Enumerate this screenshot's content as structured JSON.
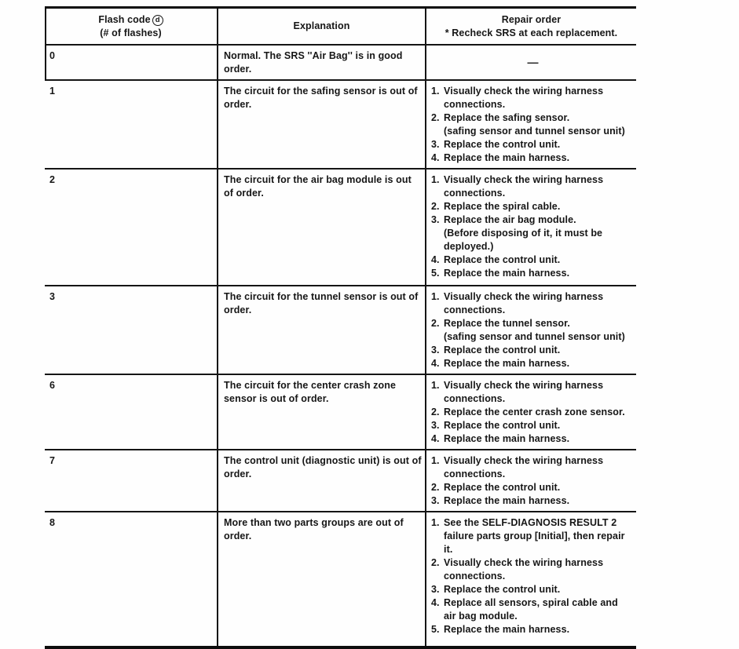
{
  "table": {
    "header": {
      "flash_code_line1": "Flash code",
      "flash_code_symbol": "d",
      "flash_code_line2": "(# of flashes)",
      "explanation": "Explanation",
      "repair_line1": "Repair order",
      "repair_line2": "* Recheck SRS at each replacement."
    },
    "rows": [
      {
        "code": "0",
        "explanation": "Normal. The SRS ''Air Bag'' is in good\norder.",
        "no_repair_symbol": "—",
        "repair": []
      },
      {
        "code": "1",
        "explanation": "The circuit for the safing sensor is out of\norder.",
        "repair": [
          {
            "num": "1.",
            "text": "Visually check the wiring harness\nconnections."
          },
          {
            "num": "2.",
            "text": "Replace the safing sensor.\n(safing sensor and tunnel sensor unit)"
          },
          {
            "num": "3.",
            "text": "Replace the control unit."
          },
          {
            "num": "4.",
            "text": "Replace the main harness."
          }
        ]
      },
      {
        "code": "2",
        "explanation": "The circuit for the air bag module is out\nof order.",
        "repair": [
          {
            "num": "1.",
            "text": "Visually check the wiring harness\nconnections."
          },
          {
            "num": "2.",
            "text": "Replace the spiral cable."
          },
          {
            "num": "3.",
            "text": "Replace the air bag module.\n(Before disposing of it, it must be\ndeployed.)"
          },
          {
            "num": "4.",
            "text": "Replace the control unit."
          },
          {
            "num": "5.",
            "text": "Replace the main harness."
          }
        ]
      },
      {
        "code": "3",
        "explanation": "The circuit for the tunnel sensor is out of\norder.",
        "repair": [
          {
            "num": "1.",
            "text": "Visually check the wiring harness\nconnections."
          },
          {
            "num": "2.",
            "text": "Replace the tunnel sensor.\n(safing sensor and tunnel sensor unit)"
          },
          {
            "num": "3.",
            "text": "Replace the control unit."
          },
          {
            "num": "4.",
            "text": "Replace the main harness."
          }
        ]
      },
      {
        "code": "6",
        "explanation": "The circuit for the center crash zone\nsensor is out of order.",
        "repair": [
          {
            "num": "1.",
            "text": "Visually check the wiring harness\nconnections."
          },
          {
            "num": "2.",
            "text": "Replace the center crash zone sensor."
          },
          {
            "num": "3.",
            "text": "Replace the control unit."
          },
          {
            "num": "4.",
            "text": "Replace the main harness."
          }
        ]
      },
      {
        "code": "7",
        "explanation": "The control unit (diagnostic unit) is out of\norder.",
        "repair": [
          {
            "num": "1.",
            "text": "Visually check the wiring harness\nconnections."
          },
          {
            "num": "2.",
            "text": "Replace the control unit."
          },
          {
            "num": "3.",
            "text": "Replace the main harness."
          }
        ]
      },
      {
        "code": "8",
        "explanation": "More than two parts groups are out of\norder.",
        "repair": [
          {
            "num": "1.",
            "text": "See the SELF-DIAGNOSIS RESULT 2\nfailure parts group [Initial], then repair\nit."
          },
          {
            "num": "2.",
            "text": "Visually check the wiring harness\nconnections."
          },
          {
            "num": "3.",
            "text": "Replace the control unit."
          },
          {
            "num": "4.",
            "text": "Replace all sensors, spiral cable and\nair bag module."
          },
          {
            "num": "5.",
            "text": "Replace the main harness."
          }
        ]
      }
    ]
  }
}
